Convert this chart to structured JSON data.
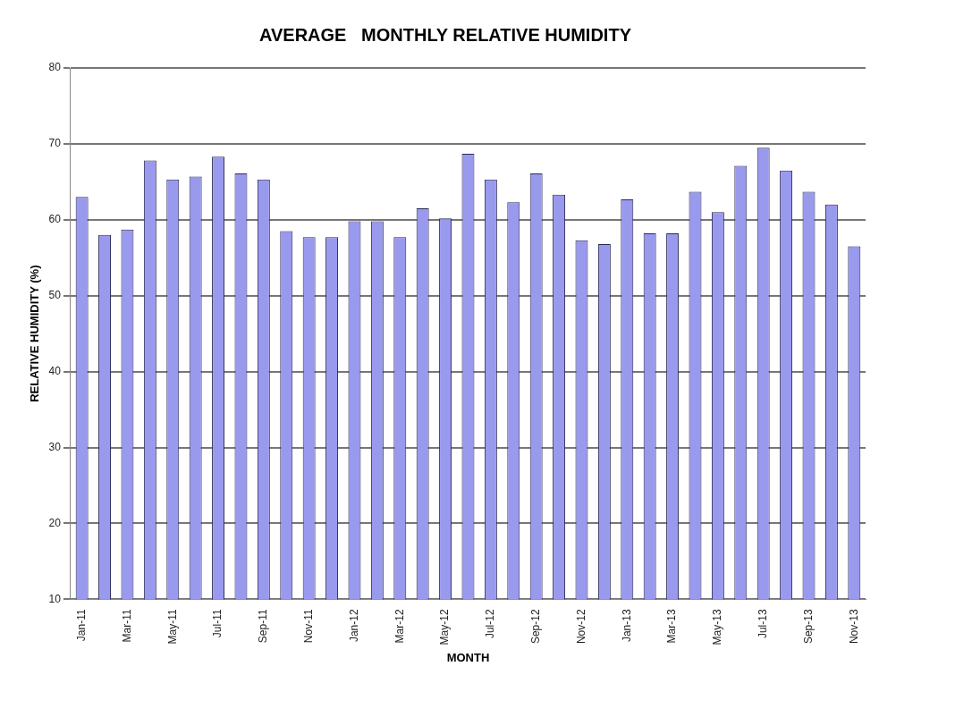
{
  "chart_data": {
    "type": "bar",
    "title": "AVERAGE   MONTHLY RELATIVE HUMIDITY",
    "xlabel": "MONTH",
    "ylabel": "RELATIVE HUMIDITY (%)",
    "categories": [
      "Jan-11",
      null,
      "Mar-11",
      null,
      "May-11",
      null,
      "Jul-11",
      null,
      "Sep-11",
      null,
      "Nov-11",
      null,
      "Jan-12",
      null,
      "Mar-12",
      null,
      "May-12",
      null,
      "Jul-12",
      null,
      "Sep-12",
      null,
      "Nov-12",
      null,
      "Jan-13",
      null,
      "Mar-13",
      null,
      "May-13",
      null,
      "Jul-13",
      null,
      "Sep-13",
      null,
      "Nov-13"
    ],
    "values": [
      63,
      58,
      58.7,
      67.8,
      65.3,
      65.7,
      68.3,
      66.1,
      65.3,
      58.5,
      57.7,
      57.7,
      59.8,
      59.8,
      57.7,
      61.5,
      60.2,
      68.7,
      65.3,
      62.3,
      66.1,
      63.3,
      57.3,
      56.8,
      62.7,
      58.2,
      58.2,
      63.7,
      61,
      67.1,
      69.5,
      66.5,
      63.7,
      62,
      56.5
    ],
    "color": "#9999ee",
    "ylim": [
      10,
      80
    ],
    "yticks": [
      10,
      20,
      30,
      40,
      50,
      60,
      70,
      80
    ],
    "grid": "y",
    "legend": false
  }
}
